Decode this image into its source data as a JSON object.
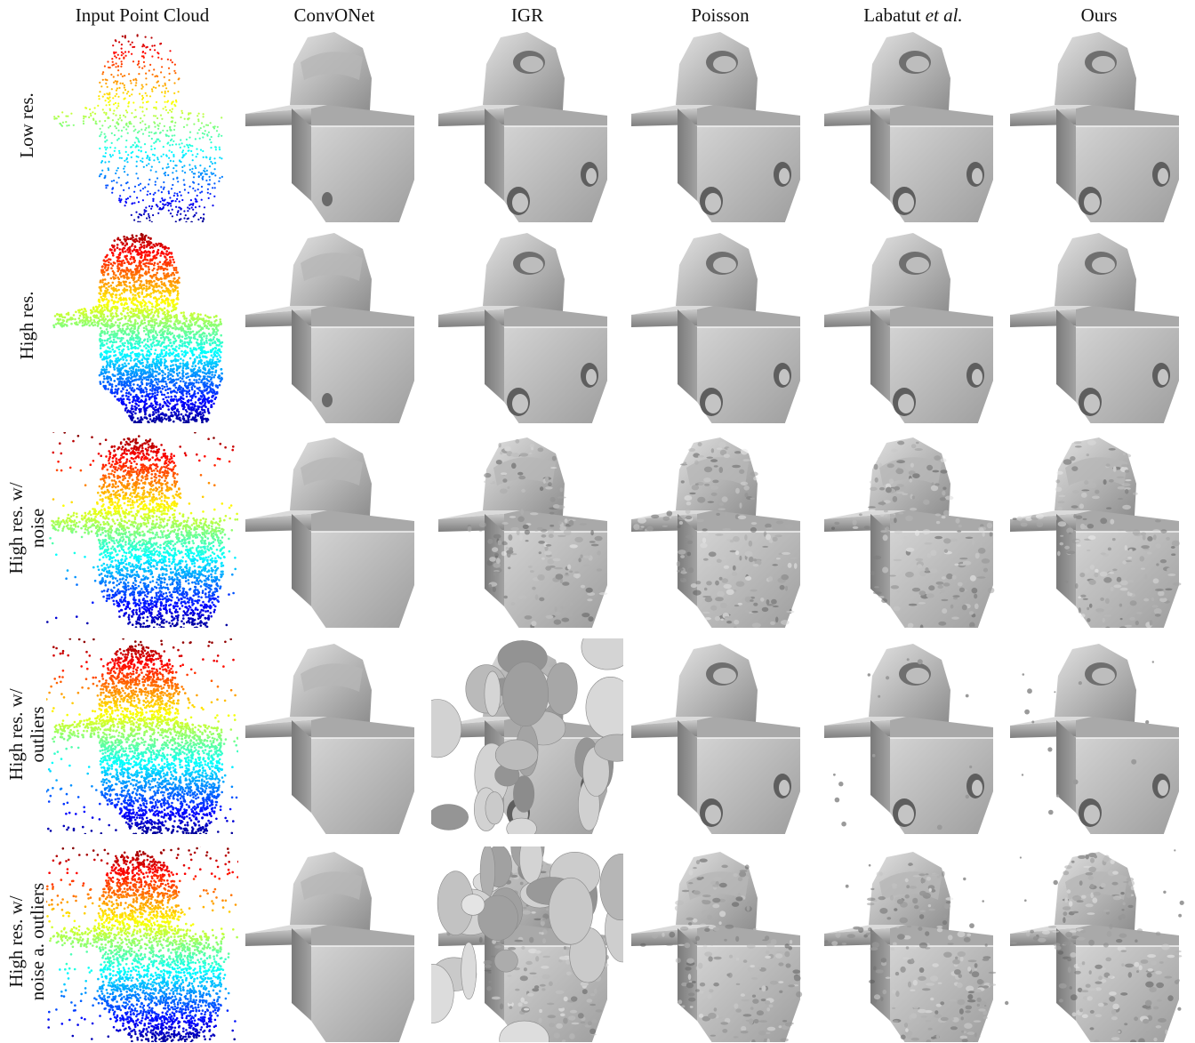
{
  "columns": [
    {
      "label": "Input Point Cloud",
      "italic_suffix": ""
    },
    {
      "label": "ConvONet",
      "italic_suffix": ""
    },
    {
      "label": "IGR",
      "italic_suffix": ""
    },
    {
      "label": "Poisson",
      "italic_suffix": ""
    },
    {
      "label": "Labatut ",
      "italic_suffix": "et al."
    },
    {
      "label": "Ours",
      "italic_suffix": ""
    }
  ],
  "rows": [
    {
      "lines": [
        "Low res."
      ]
    },
    {
      "lines": [
        "High res."
      ]
    },
    {
      "lines": [
        "High res. w/",
        "noise"
      ]
    },
    {
      "lines": [
        "High res. w/",
        "outliers"
      ]
    },
    {
      "lines": [
        "High res. w/",
        "noise a. outliers"
      ]
    }
  ]
}
